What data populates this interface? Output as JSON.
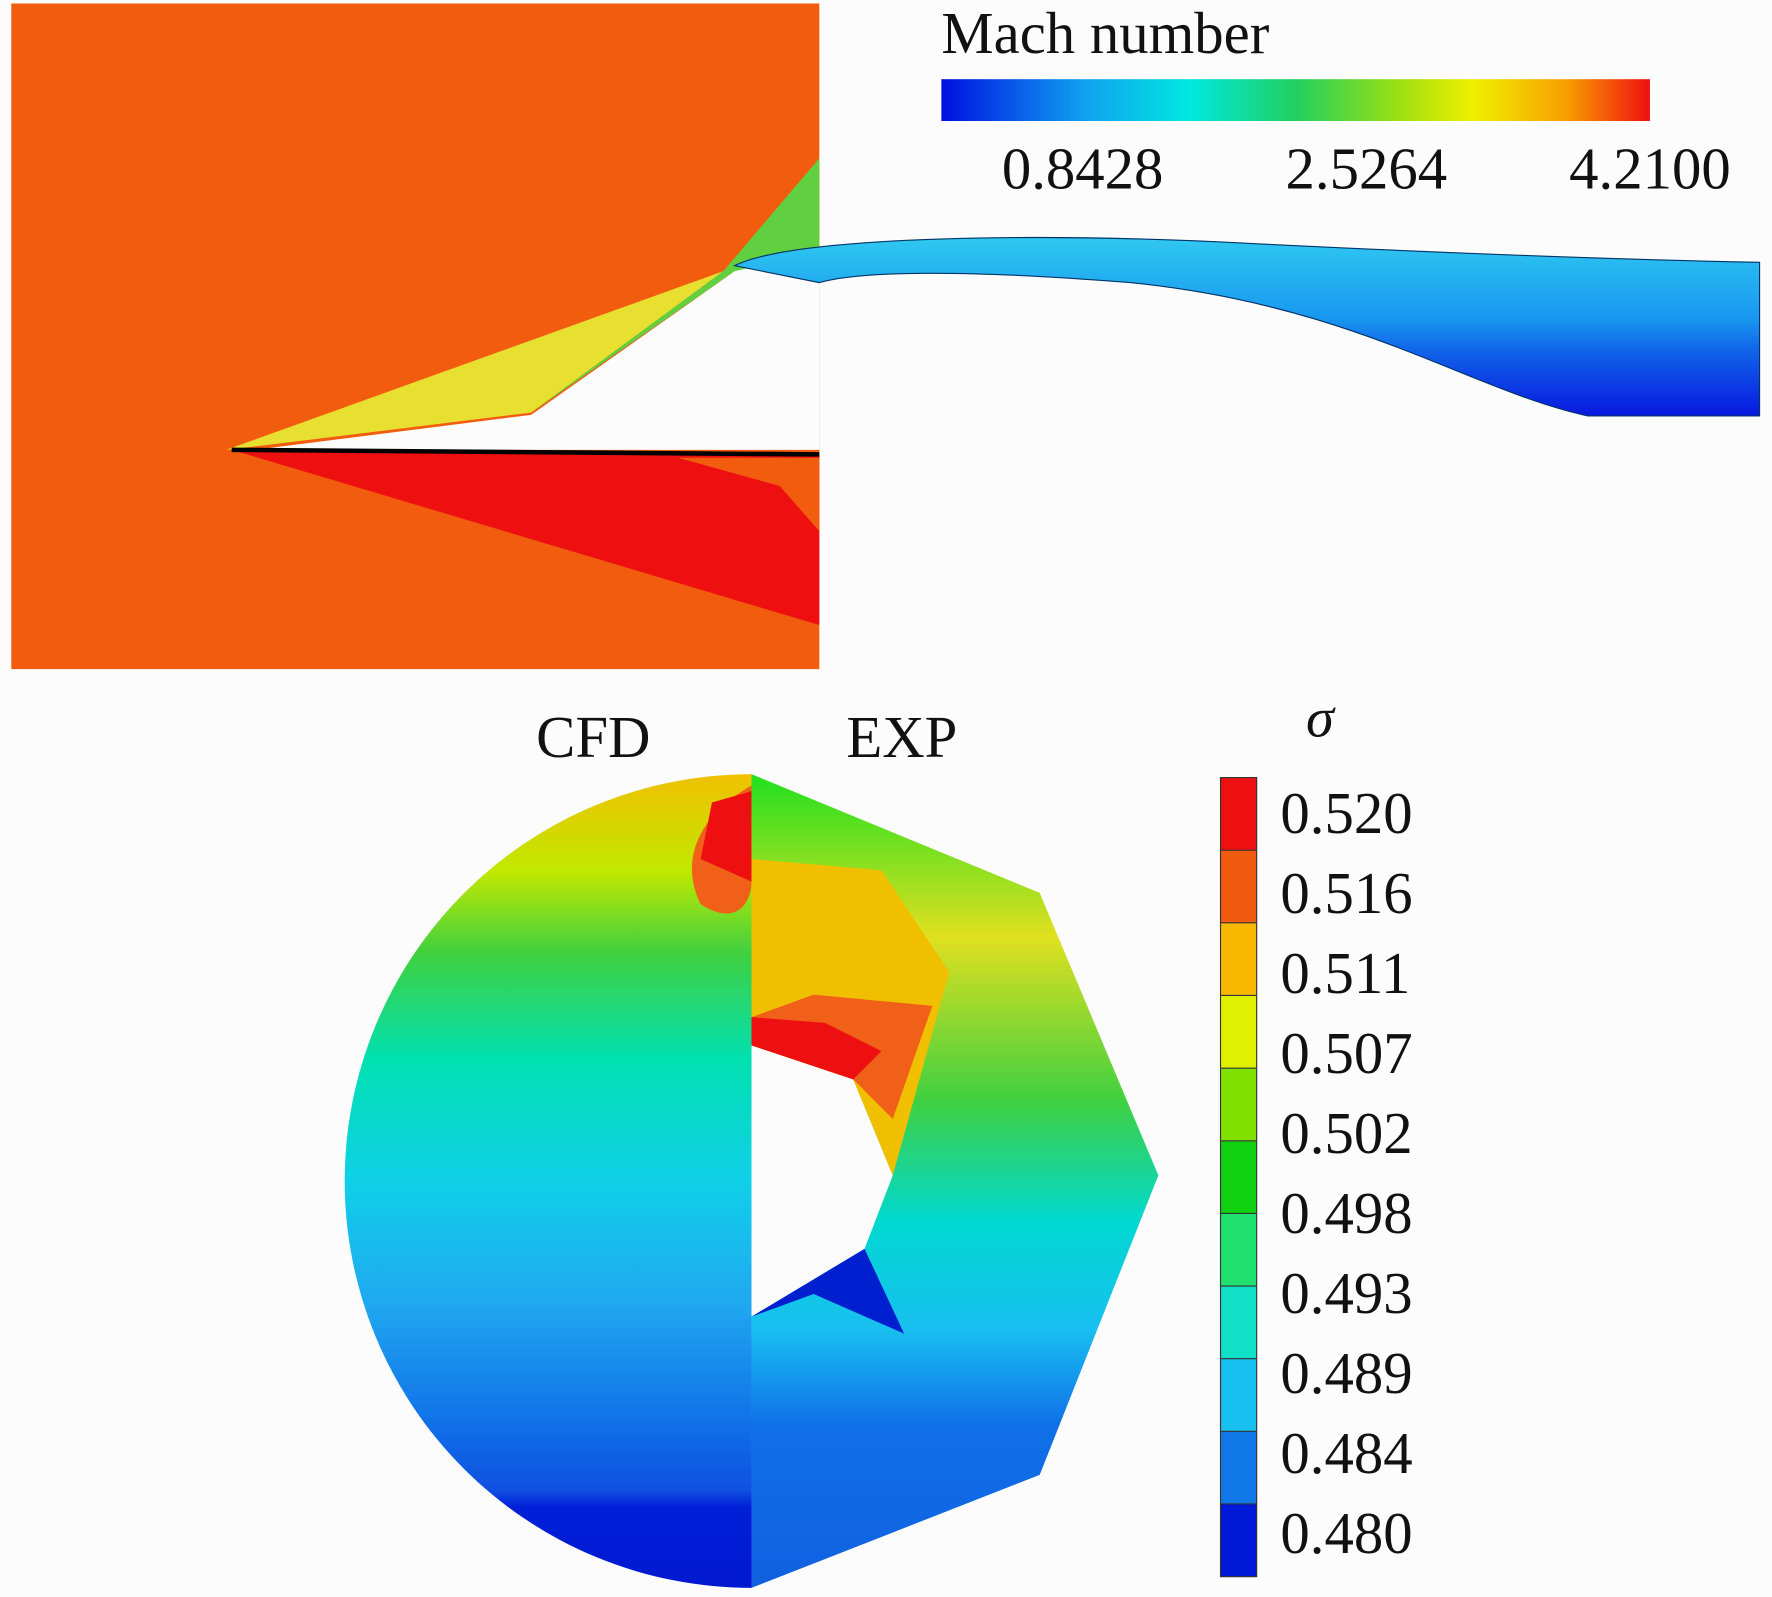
{
  "mach_legend": {
    "title": "Mach number",
    "ticks": [
      "0.8428",
      "2.5264",
      "4.2100"
    ]
  },
  "panel_labels": [
    "CFD",
    "EXP"
  ],
  "sigma_legend": {
    "title": "σ",
    "ticks": [
      "0.520",
      "0.516",
      "0.511",
      "0.507",
      "0.502",
      "0.498",
      "0.493",
      "0.489",
      "0.484",
      "0.480"
    ]
  }
}
